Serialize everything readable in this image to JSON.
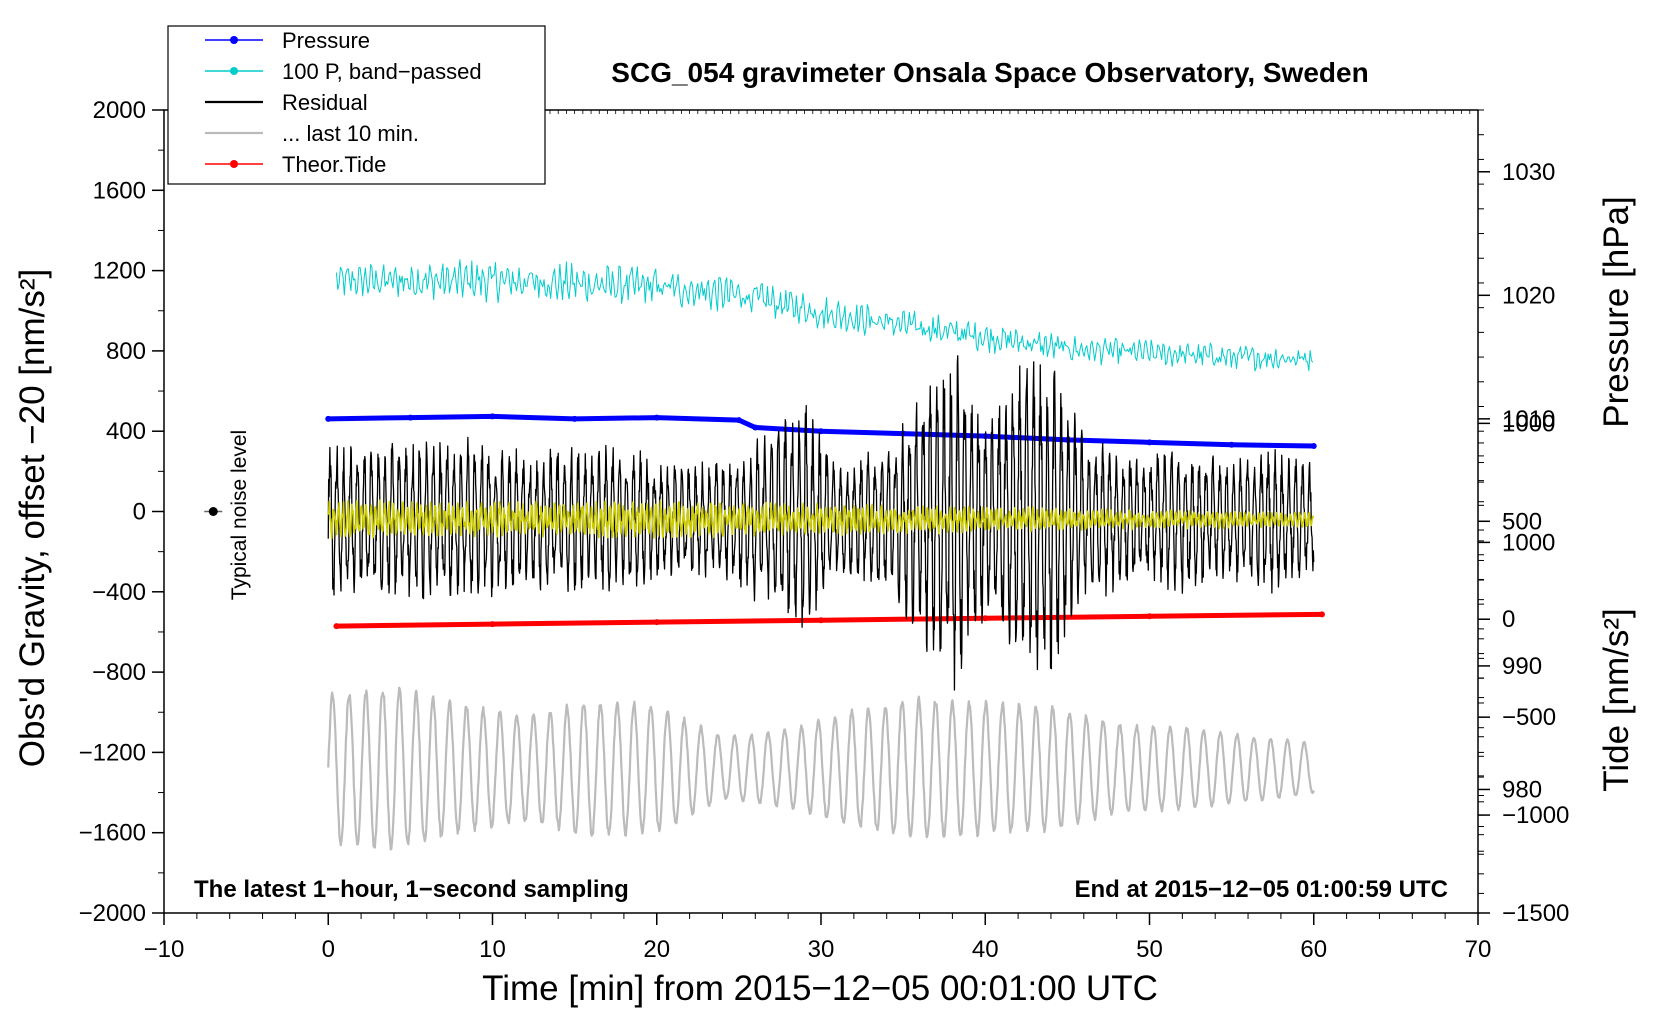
{
  "chart_data": {
    "type": "line",
    "title": "SCG_054 gravimeter Onsala Space Observatory, Sweden",
    "xlabel": "Time [min] from 2015−12−05 00:01:00 UTC",
    "ylabel_left": "Obs'd Gravity, offset −20 [nm/s²]",
    "ylabel_pressure": "Pressure [hPa]",
    "ylabel_tide": "Tide [nm/s²]",
    "xlim": [
      -10,
      70
    ],
    "ylim": [
      -2000,
      2000
    ],
    "pressure_lim": [
      970,
      1035
    ],
    "tide_lim": [
      -1500,
      2600
    ],
    "x_ticks": [
      "−10",
      "0",
      "10",
      "20",
      "30",
      "40",
      "50",
      "60",
      "70"
    ],
    "x_tick_values": [
      -10,
      0,
      10,
      20,
      30,
      40,
      50,
      60,
      70
    ],
    "y_ticks": [
      "2000",
      "1600",
      "1200",
      "800",
      "400",
      "0",
      "−400",
      "−800",
      "−1200",
      "−1600",
      "−2000"
    ],
    "y_tick_values": [
      2000,
      1600,
      1200,
      800,
      400,
      0,
      -400,
      -800,
      -1200,
      -1600,
      -2000
    ],
    "pressure_ticks": [
      "1030",
      "1020",
      "1010",
      "1000",
      "990",
      "980"
    ],
    "pressure_tick_values": [
      1030,
      1020,
      1010,
      1000,
      990,
      980
    ],
    "tide_ticks": [
      "1000",
      "500",
      "0",
      "−500",
      "−1000",
      "−1500"
    ],
    "tide_tick_values": [
      1000,
      500,
      0,
      -500,
      -1000,
      -1500
    ],
    "legend": [
      {
        "label": "Pressure",
        "color": "#0000ff",
        "marker": true
      },
      {
        "label": "100 P, band−passed",
        "color": "#00cccc",
        "marker": true
      },
      {
        "label": "Residual",
        "color": "#000000",
        "marker": false
      },
      {
        "label": "... last 10 min.",
        "color": "#bbbbbb",
        "marker": false
      },
      {
        "label": "Theor.Tide",
        "color": "#ff0000",
        "marker": true
      }
    ],
    "annotations": {
      "noise": "Typical noise level",
      "bottom_left": "The latest 1−hour, 1−second sampling",
      "bottom_right": "End at 2015−12−05 01:00:59 UTC"
    },
    "noise_marker": {
      "x": -7,
      "y": 0
    },
    "series": [
      {
        "name": "Pressure",
        "axis": "pressure",
        "color": "#0000ff",
        "x": [
          0,
          5,
          10,
          15,
          20,
          25,
          26,
          30,
          35,
          40,
          45,
          50,
          55,
          60
        ],
        "y": [
          1010.0,
          1010.1,
          1010.2,
          1010.0,
          1010.1,
          1009.9,
          1009.3,
          1009.0,
          1008.8,
          1008.6,
          1008.3,
          1008.1,
          1007.9,
          1007.8
        ]
      },
      {
        "name": "Theor.Tide",
        "axis": "tide",
        "color": "#ff0000",
        "x": [
          0.5,
          10,
          20,
          30,
          40,
          50,
          60.5
        ],
        "y": [
          -35,
          -25,
          -15,
          -5,
          5,
          15,
          25
        ]
      },
      {
        "name": "100 P, band−passed",
        "axis": "left",
        "color": "#00cccc",
        "x": [
          0.5,
          10,
          20,
          25,
          30,
          35,
          40,
          45,
          50,
          55,
          60
        ],
        "y": [
          1150,
          1150,
          1120,
          1080,
          990,
          930,
          870,
          810,
          790,
          770,
          760
        ],
        "amp": [
          90,
          110,
          110,
          100,
          90,
          85,
          80,
          75,
          70,
          70,
          65
        ]
      },
      {
        "name": "Residual",
        "axis": "left",
        "color": "#000000",
        "x": [
          0,
          3,
          6,
          9,
          12,
          15,
          18,
          21,
          24,
          27,
          29,
          31,
          34,
          37,
          38,
          40,
          42,
          44,
          46,
          49,
          52,
          55,
          57,
          60
        ],
        "y": [
          -40,
          -40,
          -40,
          -40,
          -40,
          -40,
          -40,
          -40,
          -40,
          -40,
          -40,
          -40,
          -40,
          -40,
          -40,
          -40,
          -40,
          -40,
          -40,
          -40,
          -40,
          -40,
          -40,
          -40
        ],
        "amp": [
          430,
          380,
          420,
          440,
          350,
          380,
          380,
          290,
          300,
          480,
          600,
          290,
          370,
          750,
          900,
          500,
          780,
          850,
          430,
          330,
          390,
          300,
          390,
          280
        ]
      },
      {
        "name": "Residual (yellow smoothed)",
        "axis": "left",
        "color": "#cccc00",
        "x": [
          0,
          10,
          20,
          30,
          40,
          50,
          60
        ],
        "y": [
          -40,
          -40,
          -40,
          -40,
          -40,
          -40,
          -40
        ],
        "amp": [
          100,
          90,
          100,
          80,
          70,
          50,
          40
        ]
      },
      {
        "name": "... last 10 min.",
        "axis": "left",
        "color": "#bbbbbb",
        "x": [
          0,
          4,
          8,
          12,
          16,
          20,
          24,
          28,
          32,
          36,
          40,
          44,
          48,
          52,
          56,
          60
        ],
        "y": [
          -1280,
          -1280,
          -1280,
          -1280,
          -1280,
          -1280,
          -1280,
          -1280,
          -1280,
          -1280,
          -1280,
          -1280,
          -1280,
          -1280,
          -1280,
          -1280
        ],
        "amp": [
          380,
          420,
          330,
          270,
          350,
          330,
          160,
          200,
          300,
          360,
          340,
          320,
          230,
          210,
          170,
          130
        ]
      }
    ]
  }
}
